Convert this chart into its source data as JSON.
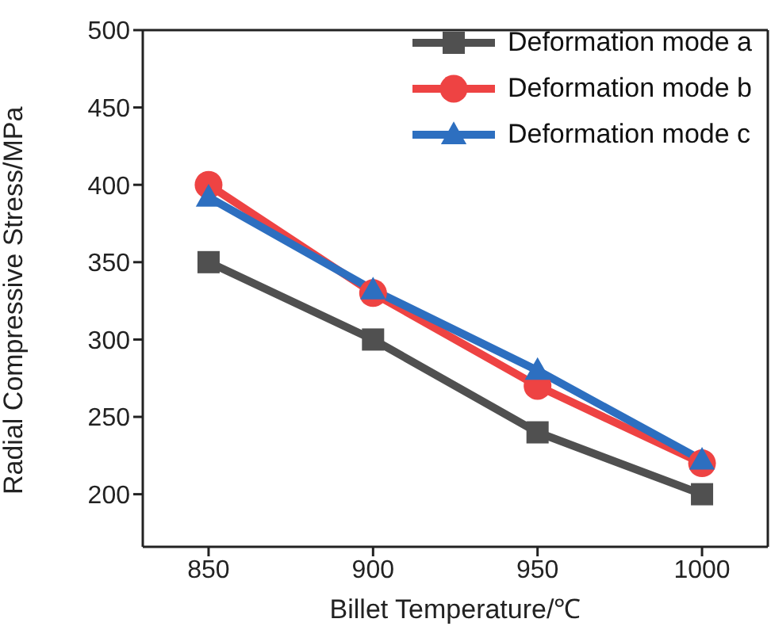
{
  "chart_data": {
    "type": "line",
    "xlabel": "Billet Temperature/℃",
    "ylabel": "Radial Compressive Stress/MPa",
    "x": [
      850,
      900,
      950,
      1000
    ],
    "xlim": [
      830,
      1020
    ],
    "xticks": [
      850,
      900,
      950,
      1000
    ],
    "ylim": [
      166,
      500
    ],
    "yticks": [
      200,
      250,
      300,
      350,
      400,
      450,
      500
    ],
    "legend": "top right",
    "grid": false,
    "series": [
      {
        "name": "Deformation mode a",
        "color": "#505050",
        "marker": "square",
        "values": [
          350,
          300,
          240,
          200
        ]
      },
      {
        "name": "Deformation mode b",
        "color": "#ee4343",
        "marker": "circle",
        "values": [
          400,
          330,
          270,
          220
        ]
      },
      {
        "name": "Deformation mode c",
        "color": "#2d6fc0",
        "marker": "triangle",
        "values": [
          392,
          332,
          280,
          222
        ]
      }
    ]
  }
}
